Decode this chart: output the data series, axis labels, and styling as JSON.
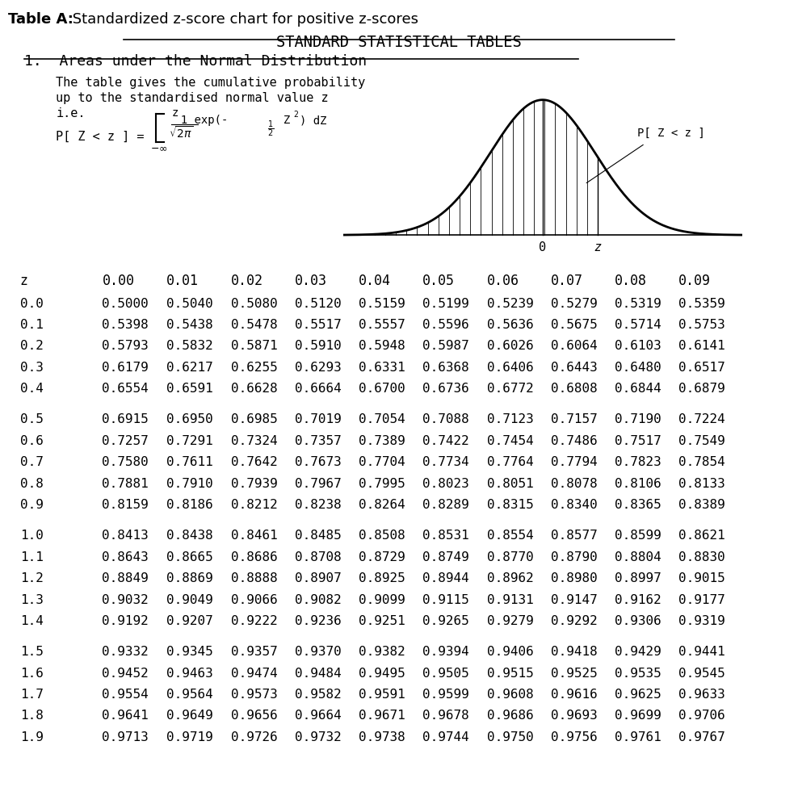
{
  "title_top_bold": "Table A:",
  "title_top_normal": " Standardized z-score chart for positive z-scores",
  "title_main": "STANDARD STATISTICAL TABLES",
  "subtitle": "1.  Areas under the Normal Distribution",
  "desc_line1": "The table gives the cumulative probability",
  "desc_line2": "up to the standardised normal value z",
  "col_headers": [
    "z",
    "0.00",
    "0.01",
    "0.02",
    "0.03",
    "0.04",
    "0.05",
    "0.06",
    "0.07",
    "0.08",
    "0.09"
  ],
  "rows": [
    [
      0.0,
      0.5,
      0.504,
      0.508,
      0.512,
      0.5159,
      0.5199,
      0.5239,
      0.5279,
      0.5319,
      0.5359
    ],
    [
      0.1,
      0.5398,
      0.5438,
      0.5478,
      0.5517,
      0.5557,
      0.5596,
      0.5636,
      0.5675,
      0.5714,
      0.5753
    ],
    [
      0.2,
      0.5793,
      0.5832,
      0.5871,
      0.591,
      0.5948,
      0.5987,
      0.6026,
      0.6064,
      0.6103,
      0.6141
    ],
    [
      0.3,
      0.6179,
      0.6217,
      0.6255,
      0.6293,
      0.6331,
      0.6368,
      0.6406,
      0.6443,
      0.648,
      0.6517
    ],
    [
      0.4,
      0.6554,
      0.6591,
      0.6628,
      0.6664,
      0.67,
      0.6736,
      0.6772,
      0.6808,
      0.6844,
      0.6879
    ],
    [
      0.5,
      0.6915,
      0.695,
      0.6985,
      0.7019,
      0.7054,
      0.7088,
      0.7123,
      0.7157,
      0.719,
      0.7224
    ],
    [
      0.6,
      0.7257,
      0.7291,
      0.7324,
      0.7357,
      0.7389,
      0.7422,
      0.7454,
      0.7486,
      0.7517,
      0.7549
    ],
    [
      0.7,
      0.758,
      0.7611,
      0.7642,
      0.7673,
      0.7704,
      0.7734,
      0.7764,
      0.7794,
      0.7823,
      0.7854
    ],
    [
      0.8,
      0.7881,
      0.791,
      0.7939,
      0.7967,
      0.7995,
      0.8023,
      0.8051,
      0.8078,
      0.8106,
      0.8133
    ],
    [
      0.9,
      0.8159,
      0.8186,
      0.8212,
      0.8238,
      0.8264,
      0.8289,
      0.8315,
      0.834,
      0.8365,
      0.8389
    ],
    [
      1.0,
      0.8413,
      0.8438,
      0.8461,
      0.8485,
      0.8508,
      0.8531,
      0.8554,
      0.8577,
      0.8599,
      0.8621
    ],
    [
      1.1,
      0.8643,
      0.8665,
      0.8686,
      0.8708,
      0.8729,
      0.8749,
      0.877,
      0.879,
      0.8804,
      0.883
    ],
    [
      1.2,
      0.8849,
      0.8869,
      0.8888,
      0.8907,
      0.8925,
      0.8944,
      0.8962,
      0.898,
      0.8997,
      0.9015
    ],
    [
      1.3,
      0.9032,
      0.9049,
      0.9066,
      0.9082,
      0.9099,
      0.9115,
      0.9131,
      0.9147,
      0.9162,
      0.9177
    ],
    [
      1.4,
      0.9192,
      0.9207,
      0.9222,
      0.9236,
      0.9251,
      0.9265,
      0.9279,
      0.9292,
      0.9306,
      0.9319
    ],
    [
      1.5,
      0.9332,
      0.9345,
      0.9357,
      0.937,
      0.9382,
      0.9394,
      0.9406,
      0.9418,
      0.9429,
      0.9441
    ],
    [
      1.6,
      0.9452,
      0.9463,
      0.9474,
      0.9484,
      0.9495,
      0.9505,
      0.9515,
      0.9525,
      0.9535,
      0.9545
    ],
    [
      1.7,
      0.9554,
      0.9564,
      0.9573,
      0.9582,
      0.9591,
      0.9599,
      0.9608,
      0.9616,
      0.9625,
      0.9633
    ],
    [
      1.8,
      0.9641,
      0.9649,
      0.9656,
      0.9664,
      0.9671,
      0.9678,
      0.9686,
      0.9693,
      0.9699,
      0.9706
    ],
    [
      1.9,
      0.9713,
      0.9719,
      0.9726,
      0.9732,
      0.9738,
      0.9744,
      0.975,
      0.9756,
      0.9761,
      0.9767
    ]
  ],
  "background_color": "#ffffff",
  "text_color": "#000000",
  "font_size_table": 11.5,
  "font_size_header": 12,
  "mono_font": "DejaVu Sans Mono"
}
